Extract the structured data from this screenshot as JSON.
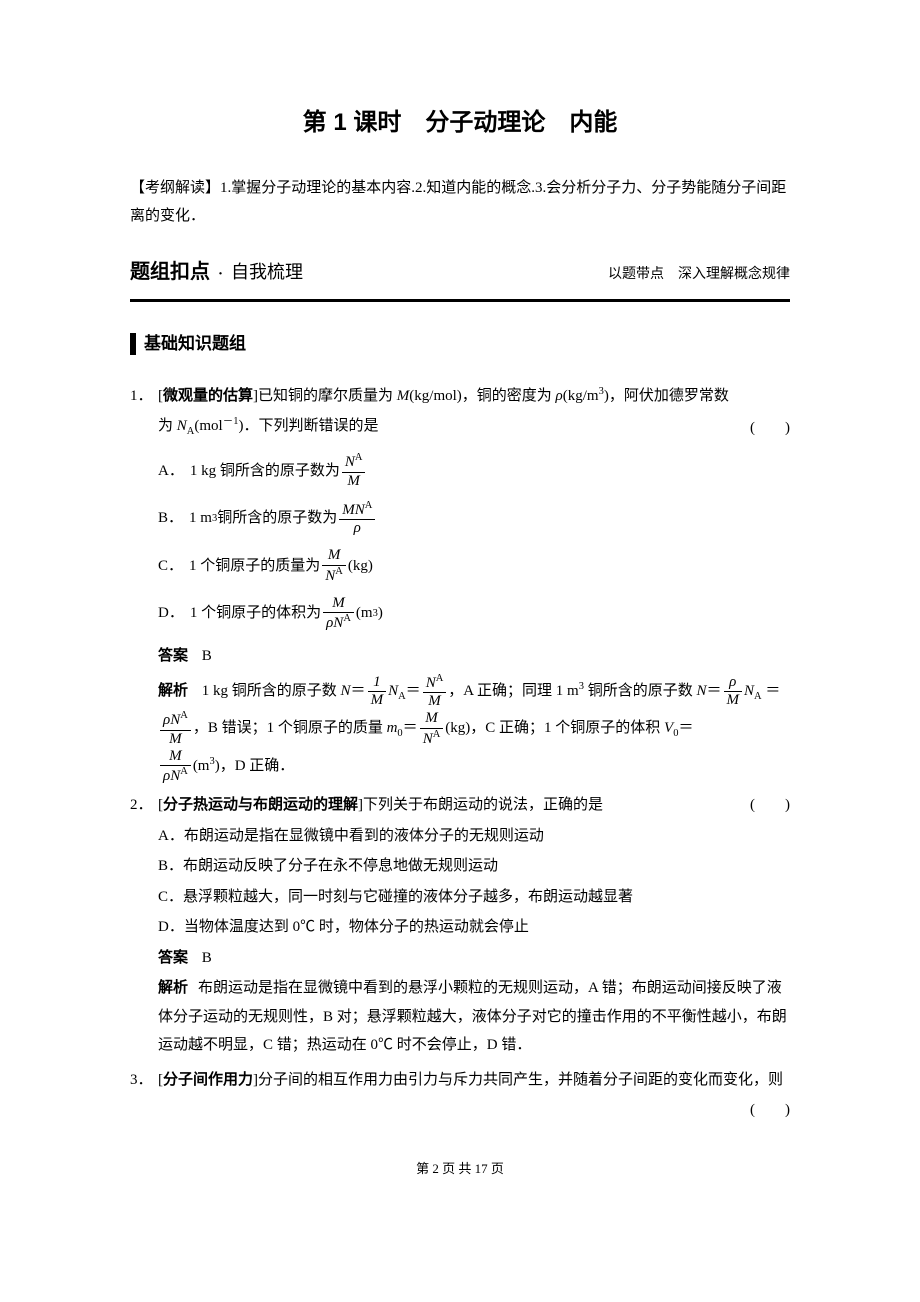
{
  "page": {
    "title": "第 1 课时　分子动理论　内能",
    "intro_label": "【考纲解读】",
    "intro_text": "1.掌握分子动理论的基本内容.2.知道内能的概念.3.会分析分子力、分子势能随分子间距离的变化．",
    "section_bar": {
      "left": "题组扣点",
      "dot": "·",
      "mid": "自我梳理",
      "right": "以题带点　深入理解概念规律"
    },
    "subhead": "基础知识题组",
    "q1": {
      "num": "1．",
      "topic": "微观量的估算",
      "stem_before": "已知铜的摩尔质量为 ",
      "stem_M": "M",
      "stem_unit1": "(kg/mol)，铜的密度为 ",
      "stem_rho": "ρ",
      "stem_unit2": "(kg/m",
      "stem_sup3": "3",
      "stem_after": ")，阿伏加德罗常数",
      "line2_before": "为 ",
      "line2_NA": "N",
      "line2_sub": "A",
      "line2_molinv": "(mol",
      "line2_exp": "－1",
      "line2_after": ")．下列判断错误的是",
      "paren": "(　　)",
      "A_label": "A．",
      "A_text": "1 kg 铜所含的原子数为",
      "B_label": "B．",
      "B_text": "1 m",
      "B_sup": "3",
      "B_text2": " 铜所含的原子数为",
      "C_label": "C．",
      "C_text": "1 个铜原子的质量为",
      "C_unit": "(kg)",
      "D_label": "D．",
      "D_text": "1 个铜原子的体积为",
      "D_unit": "(m",
      "D_sup": "3",
      "D_close": ")",
      "ans_label": "答案",
      "ans": "B",
      "exp_label": "解析",
      "exp1": "1 kg 铜所含的原子数 ",
      "exp_eq1a": "N",
      "exp_eq1b": "＝",
      "exp_mid1": "，A 正确；同理 1 m",
      "exp_sup3_1": "3",
      "exp_mid1b": " 铜所含的原子数 ",
      "exp_eq2a": "N",
      "exp_eq2b": "＝",
      "exp2": "，B 错误；1 个铜原子的质量 ",
      "exp_m0": "m",
      "exp_m0sub": "0",
      "exp_m0eq": "＝",
      "exp_m0unit": "(kg)，C 正确；1 个铜原子的体积 ",
      "exp_V0": "V",
      "exp_V0sub": "0",
      "exp_V0eq": "＝",
      "exp3": "(m",
      "exp3_sup": "3",
      "exp3_end": ")，D 正确．"
    },
    "q2": {
      "num": "2．",
      "topic": "分子热运动与布朗运动的理解",
      "stem": "下列关于布朗运动的说法，正确的是",
      "paren": "(　　)",
      "A": "A．布朗运动是指在显微镜中看到的液体分子的无规则运动",
      "B": "B．布朗运动反映了分子在永不停息地做无规则运动",
      "C": "C．悬浮颗粒越大，同一时刻与它碰撞的液体分子越多，布朗运动越显著",
      "D": "D．当物体温度达到 0℃ 时，物体分子的热运动就会停止",
      "ans_label": "答案",
      "ans": "B",
      "exp_label": "解析",
      "exp": "布朗运动是指在显微镜中看到的悬浮小颗粒的无规则运动，A 错；布朗运动间接反映了液体分子运动的无规则性，B 对；悬浮颗粒越大，液体分子对它的撞击作用的不平衡性越小，布朗运动越不明显，C 错；热运动在 0℃ 时不会停止，D 错．"
    },
    "q3": {
      "num": "3．",
      "topic": "分子间作用力",
      "stem": "分子间的相互作用力由引力与斥力共同产生，并随着分子间距的变化而变化，则",
      "paren": "(　　)"
    },
    "footer": "第 2 页 共 17 页"
  },
  "style": {
    "text_color": "#000000",
    "bg_color": "#ffffff",
    "body_fontsize": 15,
    "title_fontsize": 24,
    "section_left_fontsize": 20,
    "subhead_fontsize": 17,
    "underline_width": 3
  }
}
